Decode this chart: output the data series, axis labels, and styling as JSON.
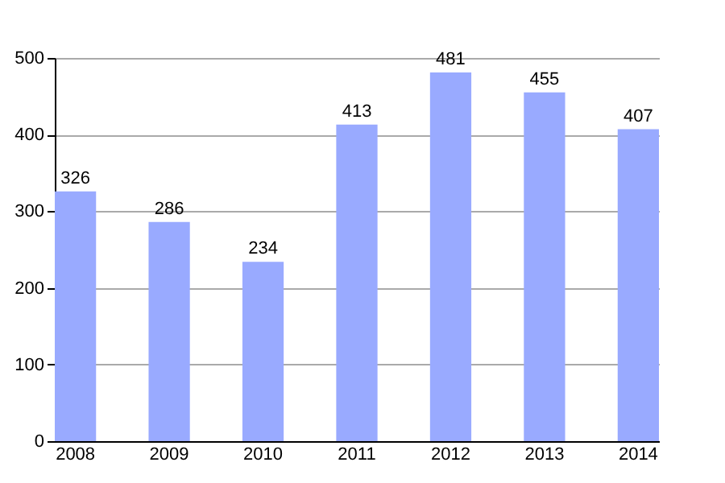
{
  "chart_data": {
    "type": "bar",
    "categories": [
      "2008",
      "2009",
      "2010",
      "2011",
      "2012",
      "2013",
      "2014"
    ],
    "values": [
      326,
      286,
      234,
      413,
      481,
      455,
      407
    ],
    "color": "#99aaff",
    "ylim": [
      0,
      500
    ],
    "yticks": [
      0,
      100,
      200,
      300,
      400,
      500
    ],
    "grid": "y",
    "data_labels": true
  }
}
